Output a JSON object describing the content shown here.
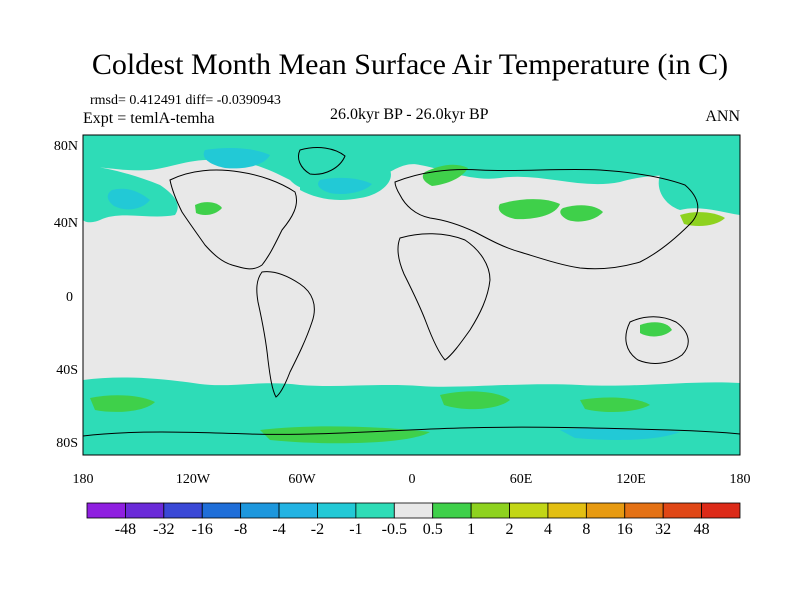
{
  "title": "Coldest Month Mean Surface Air Temperature (in C)",
  "stats_line": "rmsd= 0.412491 diff= -0.0390943",
  "experiment": "Expt = temlA-temha",
  "period": "26.0kyr BP - 26.0kyr BP",
  "season": "ANN",
  "lat_labels": [
    "80N",
    "40N",
    "0",
    "40S",
    "80S"
  ],
  "lon_labels": [
    "180",
    "120W",
    "60W",
    "0",
    "60E",
    "120E",
    "180"
  ],
  "colorbar": {
    "levels": [
      "-48",
      "-32",
      "-16",
      "-8",
      "-4",
      "-2",
      "-1",
      "-0.5",
      "0.5",
      "1",
      "2",
      "4",
      "8",
      "16",
      "32",
      "48"
    ],
    "colors": [
      "#8f1fe0",
      "#6a2ad8",
      "#3a48d6",
      "#1f6ed8",
      "#1d97dd",
      "#22b3e3",
      "#22c9d6",
      "#2edcb7",
      "#e8e8e8",
      "#3fd04a",
      "#8ed21f",
      "#c2d616",
      "#e3bf12",
      "#e79a11",
      "#e47114",
      "#e04716",
      "#dc2a18"
    ]
  },
  "colors": {
    "ocean_bg": "#e8e8e8",
    "cool_light": "#2edcb7",
    "cool_mid": "#22c9d6",
    "warm_light": "#3fd04a",
    "warm_mid": "#8ed21f",
    "warm_strong": "#c2d616"
  }
}
